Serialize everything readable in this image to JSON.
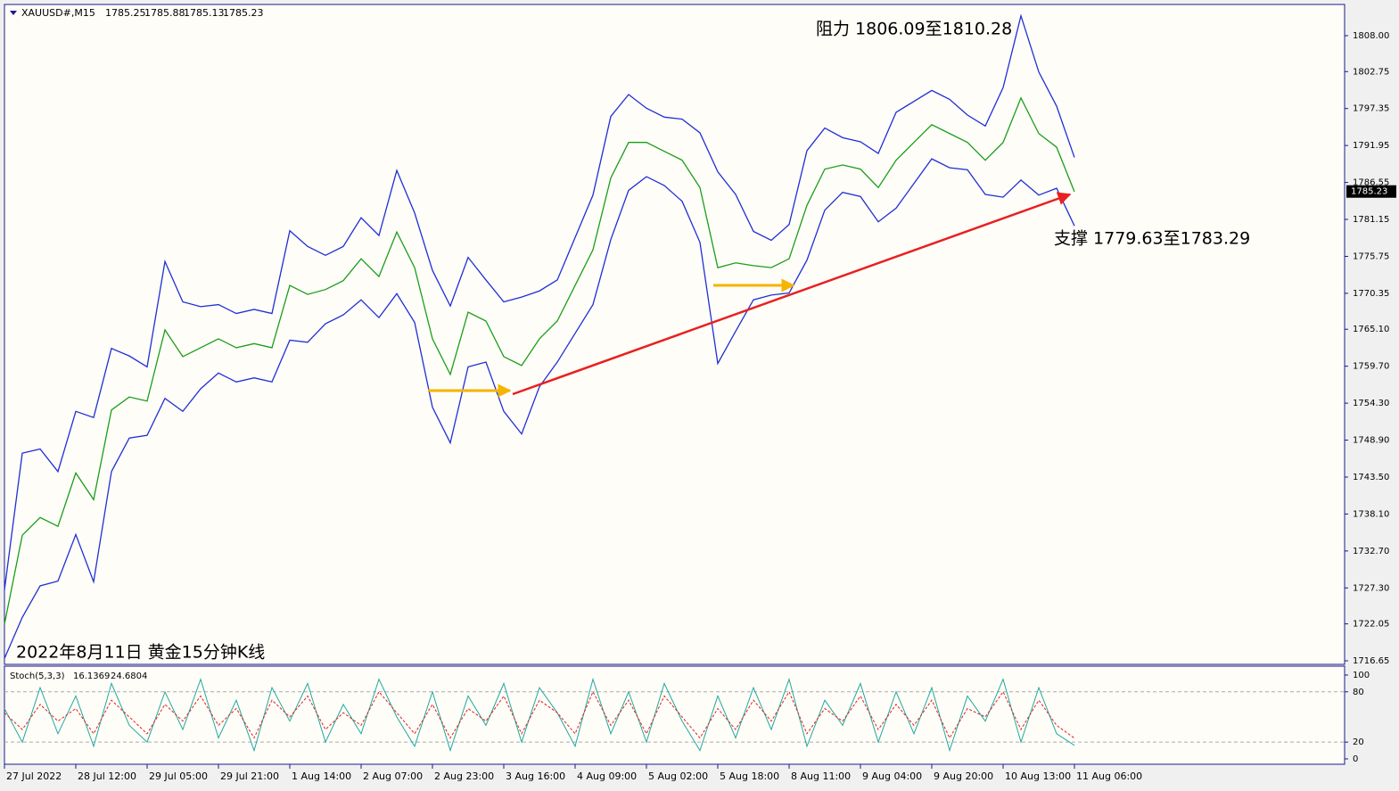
{
  "chart_data": [
    {
      "type": "line",
      "title": "XAUUSD#,M15",
      "ohlc": [
        1785.25,
        1785.88,
        1785.13,
        1785.23
      ],
      "annotations": [
        "阻力 1806.09至1810.28",
        "支撑 1779.63至1783.29",
        "2022年8月11日 黄金15分钟K线"
      ],
      "x_labels": [
        "27 Jul 2022",
        "28 Jul 12:00",
        "29 Jul 05:00",
        "29 Jul 21:00",
        "1 Aug 14:00",
        "2 Aug 07:00",
        "2 Aug 23:00",
        "3 Aug 16:00",
        "4 Aug 09:00",
        "5 Aug 02:00",
        "5 Aug 18:00",
        "8 Aug 11:00",
        "9 Aug 04:00",
        "9 Aug 20:00",
        "10 Aug 13:00",
        "11 Aug 06:00"
      ],
      "ylim": [
        1716.13,
        1812.56
      ],
      "yticks": [
        {
          "value": 1808,
          "label": "1808.00"
        },
        1802.75,
        1797.35,
        1791.95,
        1786.55,
        1781.15,
        1775.75,
        1770.35,
        {
          "value": 1765.1,
          "label": "1765.10"
        },
        {
          "value": 1759.7,
          "label": "1759.70"
        },
        {
          "value": 1754.3,
          "label": "1754.30"
        },
        {
          "value": 1748.9,
          "label": "1748.90"
        },
        {
          "value": 1743.5,
          "label": "1743.50"
        },
        {
          "value": 1738.1,
          "label": "1738.10"
        },
        {
          "value": 1732.7,
          "label": "1732.70"
        },
        {
          "value": 1727.3,
          "label": "1727.30"
        },
        1722.05,
        1716.65
      ],
      "series": [
        {
          "color": "#1f2fd6",
          "values": [
            1727.0,
            1747.0,
            1747.6,
            1744.3,
            1753.1,
            1752.2,
            1762.3,
            1761.2,
            1759.6,
            1775.0,
            1769.1,
            1768.4,
            1768.7,
            1767.4,
            1768.0,
            1767.4,
            1779.5,
            1777.2,
            1775.9,
            1777.2,
            1781.4,
            1778.8,
            1788.3,
            1782.1,
            1773.7,
            1768.5,
            1775.6,
            1772.3,
            1769.1,
            1769.8,
            1770.7,
            1772.3,
            1778.5,
            1784.7,
            1796.2,
            1799.4,
            1797.4,
            1796.1,
            1795.8,
            1793.8,
            1788.1,
            1784.8,
            1779.4,
            1778.1,
            1780.4,
            1791.2,
            1794.5,
            1793.1,
            1792.5,
            1790.8,
            1796.8,
            1798.4,
            1800.0,
            1798.7,
            1796.4,
            1794.8,
            1800.4,
            1810.9,
            1802.7,
            1797.7,
            1790.2
          ]
        },
        {
          "color": "#1f2fd6",
          "values": [
            1717.0,
            1723.0,
            1727.6,
            1728.3,
            1735.1,
            1728.2,
            1744.3,
            1749.2,
            1749.6,
            1755.0,
            1753.1,
            1756.4,
            1758.7,
            1757.4,
            1758.0,
            1757.4,
            1763.5,
            1763.2,
            1765.9,
            1767.2,
            1769.4,
            1766.8,
            1770.3,
            1766.1,
            1753.7,
            1748.5,
            1759.6,
            1760.3,
            1753.1,
            1749.8,
            1756.7,
            1760.3,
            1764.5,
            1768.7,
            1778.2,
            1785.4,
            1787.4,
            1786.1,
            1783.8,
            1777.8,
            1760.1,
            1764.8,
            1769.4,
            1770.1,
            1770.4,
            1775.2,
            1782.5,
            1785.1,
            1784.5,
            1780.8,
            1782.8,
            1786.4,
            1790.0,
            1788.7,
            1788.4,
            1784.8,
            1784.4,
            1786.9,
            1784.7,
            1785.7,
            1780.2
          ]
        },
        {
          "color": "#1a9e1a",
          "values": [
            1722.0,
            1735.0,
            1737.6,
            1736.3,
            1744.1,
            1740.2,
            1753.3,
            1755.2,
            1754.6,
            1765.0,
            1761.1,
            1762.4,
            1763.7,
            1762.4,
            1763.0,
            1762.4,
            1771.5,
            1770.2,
            1770.9,
            1772.2,
            1775.4,
            1772.8,
            1779.3,
            1774.1,
            1763.7,
            1758.5,
            1767.6,
            1766.3,
            1761.1,
            1759.8,
            1763.7,
            1766.3,
            1771.5,
            1776.7,
            1787.2,
            1792.4,
            1792.4,
            1791.1,
            1789.8,
            1785.8,
            1774.1,
            1774.8,
            1774.4,
            1774.1,
            1775.4,
            1783.2,
            1788.5,
            1789.1,
            1788.5,
            1785.8,
            1789.8,
            1792.4,
            1795.0,
            1793.7,
            1792.4,
            1789.8,
            1792.4,
            1798.9,
            1793.7,
            1791.7,
            1785.2
          ]
        }
      ]
    },
    {
      "type": "line",
      "title": "Stoch(5,3,3)",
      "readings": [
        16.1369,
        24.6804
      ],
      "ylim": [
        -6.4,
        110.6
      ],
      "yticks": [
        100,
        80,
        20,
        0
      ],
      "levels": [
        80,
        20
      ],
      "series": [
        {
          "color": "#20a8a0",
          "values": [
            60,
            20,
            85,
            30,
            75,
            15,
            90,
            40,
            20,
            80,
            35,
            95,
            25,
            70,
            10,
            85,
            45,
            90,
            20,
            65,
            30,
            95,
            50,
            15,
            80,
            10,
            75,
            40,
            90,
            20,
            85,
            55,
            15,
            95,
            30,
            80,
            20,
            90,
            45,
            10,
            75,
            25,
            85,
            35,
            95,
            15,
            70,
            40,
            90,
            20,
            80,
            30,
            85,
            10,
            75,
            45,
            95,
            20,
            85,
            30,
            16.1369
          ]
        },
        {
          "color": "#e02020",
          "values": [
            55,
            35,
            65,
            45,
            60,
            30,
            70,
            50,
            30,
            65,
            45,
            75,
            40,
            60,
            25,
            70,
            50,
            75,
            35,
            55,
            40,
            80,
            55,
            30,
            65,
            25,
            60,
            45,
            75,
            30,
            70,
            55,
            30,
            80,
            40,
            70,
            30,
            75,
            50,
            25,
            60,
            35,
            70,
            45,
            80,
            30,
            60,
            45,
            75,
            35,
            65,
            40,
            70,
            25,
            60,
            50,
            80,
            35,
            70,
            40,
            24.6804
          ]
        }
      ]
    }
  ]
}
